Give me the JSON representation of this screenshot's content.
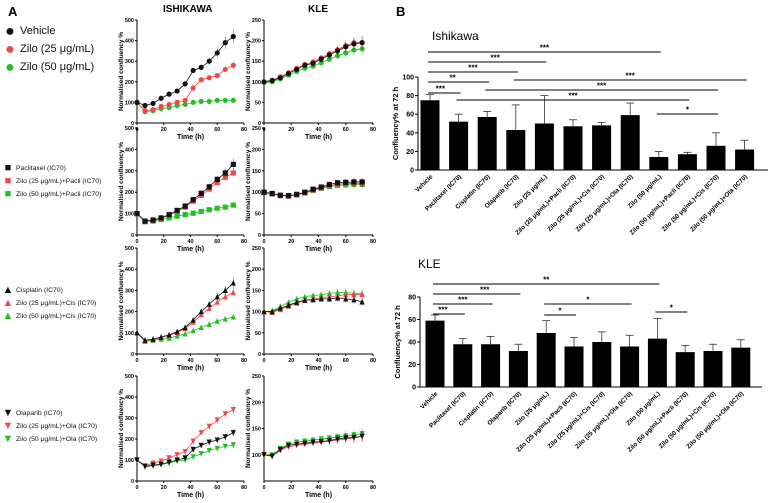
{
  "panel_labels": {
    "a": "A",
    "b": "B"
  },
  "column_titles": {
    "ishikawa": "ISHIKAWA",
    "kle": "KLE"
  },
  "colors": {
    "black": "#111111",
    "red": "#f0474d",
    "green": "#22c022"
  },
  "legends": [
    {
      "marker": "circle",
      "items": [
        "Vehicle",
        "Zilo (25 μg/mL)",
        "Zilo (50 μg/mL)"
      ]
    },
    {
      "marker": "square",
      "items": [
        "Paclitaxel (IC70)",
        "Zilo (25 μg/mL)+Pacli (IC70)",
        "Zilo (50 μg/mL)+Pacli (IC70)"
      ]
    },
    {
      "marker": "triangle-up",
      "items": [
        "Cisplatin (IC70)",
        "Zilo (25 μg/mL)+Cis (IC70)",
        "Zilo (50 μg/mL)+Cis (IC70)"
      ]
    },
    {
      "marker": "triangle-down",
      "items": [
        "Olaparib (IC70)",
        "Zilo (25 μg/mL)+Ola (IC70)",
        "Zilo (50 μg/mL)+Ola (IC70)"
      ]
    }
  ],
  "chart_data": [
    {
      "type": "line",
      "id": "ish-vehicle",
      "xlabel": "Time (h)",
      "ylabel": "Normalised confluency %",
      "xlim": [
        0,
        80
      ],
      "ylim": [
        0,
        500
      ],
      "xticks": [
        0,
        20,
        40,
        60,
        80
      ],
      "yticks": [
        0,
        100,
        200,
        300,
        400,
        500
      ],
      "x": [
        0,
        6,
        12,
        18,
        24,
        30,
        36,
        42,
        48,
        54,
        60,
        66,
        72
      ],
      "series": [
        {
          "name": "Vehicle",
          "values": [
            100,
            85,
            95,
            120,
            140,
            155,
            190,
            255,
            270,
            300,
            340,
            390,
            420
          ]
        },
        {
          "name": "Zilo (25 μg/mL)",
          "values": [
            100,
            60,
            65,
            80,
            90,
            100,
            110,
            170,
            210,
            220,
            230,
            260,
            280
          ]
        },
        {
          "name": "Zilo (50 μg/mL)",
          "values": [
            100,
            55,
            60,
            70,
            75,
            85,
            90,
            100,
            105,
            105,
            110,
            110,
            110
          ]
        }
      ]
    },
    {
      "type": "line",
      "id": "kle-vehicle",
      "xlabel": "Time (h)",
      "ylabel": "Normalised confluency %",
      "xlim": [
        0,
        80
      ],
      "ylim": [
        0,
        250
      ],
      "xticks": [
        0,
        20,
        40,
        60,
        80
      ],
      "yticks": [
        0,
        50,
        100,
        150,
        200,
        250
      ],
      "x": [
        0,
        6,
        12,
        18,
        24,
        30,
        36,
        42,
        48,
        54,
        60,
        66,
        72
      ],
      "series": [
        {
          "name": "Vehicle",
          "values": [
            100,
            103,
            110,
            120,
            130,
            140,
            145,
            155,
            165,
            175,
            185,
            192,
            195
          ]
        },
        {
          "name": "Zilo (25 μg/mL)",
          "values": [
            100,
            104,
            112,
            122,
            133,
            142,
            148,
            158,
            168,
            178,
            188,
            195,
            195
          ]
        },
        {
          "name": "Zilo (50 μg/mL)",
          "values": [
            98,
            100,
            107,
            116,
            125,
            133,
            138,
            146,
            155,
            163,
            170,
            177,
            180
          ]
        }
      ]
    },
    {
      "type": "line",
      "id": "ish-pacli",
      "xlabel": "Time (h)",
      "ylabel": "Normalised confluency %",
      "xlim": [
        0,
        80
      ],
      "ylim": [
        0,
        500
      ],
      "xticks": [
        0,
        20,
        40,
        60,
        80
      ],
      "yticks": [
        0,
        100,
        200,
        300,
        400,
        500
      ],
      "x": [
        0,
        6,
        12,
        18,
        24,
        30,
        36,
        42,
        48,
        54,
        60,
        66,
        72
      ],
      "series": [
        {
          "name": "Paclitaxel (IC70)",
          "values": [
            100,
            65,
            70,
            80,
            95,
            115,
            135,
            165,
            195,
            225,
            260,
            290,
            330
          ]
        },
        {
          "name": "Zilo (25 μg/mL)+Pacli (IC70)",
          "values": [
            100,
            63,
            68,
            78,
            92,
            110,
            130,
            158,
            185,
            215,
            245,
            270,
            290
          ]
        },
        {
          "name": "Zilo (50 μg/mL)+Pacli (IC70)",
          "values": [
            100,
            62,
            65,
            72,
            80,
            88,
            95,
            102,
            110,
            118,
            125,
            130,
            140
          ]
        }
      ]
    },
    {
      "type": "line",
      "id": "kle-pacli",
      "xlabel": "Time (h)",
      "ylabel": "Normalised confluency %",
      "xlim": [
        0,
        80
      ],
      "ylim": [
        0,
        250
      ],
      "xticks": [
        0,
        20,
        40,
        60,
        80
      ],
      "yticks": [
        0,
        50,
        100,
        150,
        200,
        250
      ],
      "x": [
        0,
        6,
        12,
        18,
        24,
        30,
        36,
        42,
        48,
        54,
        60,
        66,
        72
      ],
      "series": [
        {
          "name": "Paclitaxel (IC70)",
          "values": [
            100,
            97,
            93,
            92,
            95,
            100,
            107,
            112,
            118,
            122,
            123,
            124,
            124
          ]
        },
        {
          "name": "Zilo (25 μg/mL)+Pacli (IC70)",
          "values": [
            100,
            96,
            92,
            91,
            94,
            99,
            105,
            110,
            115,
            119,
            120,
            120,
            120
          ]
        },
        {
          "name": "Zilo (50 μg/mL)+Pacli (IC70)",
          "values": [
            99,
            96,
            92,
            91,
            94,
            98,
            104,
            109,
            113,
            116,
            117,
            118,
            118
          ]
        }
      ]
    },
    {
      "type": "line",
      "id": "ish-cis",
      "xlabel": "Time (h)",
      "ylabel": "Normalised confluency %",
      "xlim": [
        0,
        80
      ],
      "ylim": [
        0,
        500
      ],
      "xticks": [
        0,
        20,
        40,
        60,
        80
      ],
      "yticks": [
        0,
        100,
        200,
        300,
        400,
        500
      ],
      "x": [
        0,
        6,
        12,
        18,
        24,
        30,
        36,
        42,
        48,
        54,
        60,
        66,
        72
      ],
      "series": [
        {
          "name": "Cisplatin (IC70)",
          "values": [
            100,
            65,
            70,
            80,
            90,
            105,
            125,
            160,
            200,
            235,
            270,
            300,
            335
          ]
        },
        {
          "name": "Zilo (25 μg/mL)+Cis (IC70)",
          "values": [
            100,
            64,
            68,
            78,
            88,
            102,
            120,
            150,
            185,
            215,
            245,
            270,
            290
          ]
        },
        {
          "name": "Zilo (50 μg/mL)+Cis (IC70)",
          "values": [
            100,
            60,
            65,
            70,
            75,
            85,
            95,
            110,
            125,
            140,
            155,
            165,
            175
          ]
        }
      ]
    },
    {
      "type": "line",
      "id": "kle-cis",
      "xlabel": "Time (h)",
      "ylabel": "Normalised confluency %",
      "xlim": [
        0,
        80
      ],
      "ylim": [
        0,
        250
      ],
      "xticks": [
        0,
        20,
        40,
        60,
        80
      ],
      "yticks": [
        0,
        50,
        100,
        150,
        200,
        250
      ],
      "x": [
        0,
        6,
        12,
        18,
        24,
        30,
        36,
        42,
        48,
        54,
        60,
        66,
        72
      ],
      "series": [
        {
          "name": "Cisplatin (IC70)",
          "values": [
            100,
            100,
            108,
            115,
            122,
            127,
            128,
            130,
            130,
            132,
            130,
            128,
            123
          ]
        },
        {
          "name": "Zilo (25 μg/mL)+Cis (IC70)",
          "values": [
            100,
            98,
            105,
            113,
            120,
            126,
            130,
            133,
            135,
            137,
            140,
            140,
            140
          ]
        },
        {
          "name": "Zilo (50 μg/mL)+Cis (IC70)",
          "values": [
            100,
            102,
            112,
            122,
            130,
            135,
            138,
            140,
            143,
            145,
            145,
            143,
            142
          ]
        }
      ]
    },
    {
      "type": "line",
      "id": "ish-ola",
      "xlabel": "Time (h)",
      "ylabel": "Normalised confluency %",
      "xlim": [
        0,
        80
      ],
      "ylim": [
        0,
        500
      ],
      "xticks": [
        0,
        20,
        40,
        60,
        80
      ],
      "yticks": [
        0,
        100,
        200,
        300,
        400,
        500
      ],
      "x": [
        0,
        6,
        12,
        18,
        24,
        30,
        36,
        42,
        48,
        54,
        60,
        66,
        72
      ],
      "series": [
        {
          "name": "Olaparib (IC70)",
          "values": [
            100,
            70,
            75,
            80,
            90,
            100,
            110,
            150,
            170,
            185,
            195,
            210,
            230
          ]
        },
        {
          "name": "Zilo (25 μg/mL)+Ola (IC70)",
          "values": [
            100,
            72,
            85,
            95,
            110,
            125,
            140,
            190,
            230,
            260,
            290,
            320,
            340
          ]
        },
        {
          "name": "Zilo (50 μg/mL)+Ola (IC70)",
          "values": [
            100,
            68,
            72,
            78,
            85,
            95,
            100,
            115,
            130,
            145,
            155,
            165,
            172
          ]
        }
      ]
    },
    {
      "type": "line",
      "id": "kle-ola",
      "xlabel": "Time (h)",
      "ylabel": "Normalised confluency %",
      "xlim": [
        0,
        80
      ],
      "ylim": [
        50,
        250
      ],
      "xticks": [
        0,
        20,
        40,
        60,
        80
      ],
      "yticks": [
        100,
        150,
        200,
        250
      ],
      "x": [
        0,
        6,
        12,
        18,
        24,
        30,
        36,
        42,
        48,
        54,
        60,
        66,
        72
      ],
      "series": [
        {
          "name": "Olaparib (IC70)",
          "values": [
            100,
            97,
            110,
            118,
            120,
            122,
            124,
            125,
            127,
            130,
            132,
            133,
            135
          ]
        },
        {
          "name": "Zilo (25 μg/mL)+Ola (IC70)",
          "values": [
            100,
            98,
            108,
            115,
            118,
            120,
            122,
            124,
            126,
            128,
            130,
            132,
            135
          ]
        },
        {
          "name": "Zilo (50 μg/mL)+Ola (IC70)",
          "values": [
            100,
            100,
            112,
            120,
            124,
            126,
            128,
            130,
            132,
            134,
            136,
            138,
            140
          ]
        }
      ]
    },
    {
      "type": "bar",
      "id": "ishikawa-bar",
      "title": "Ishikawa",
      "ylabel": "Confluency% at 72 h",
      "ylim": [
        0,
        100
      ],
      "yticks": [
        0,
        20,
        40,
        60,
        80,
        100
      ],
      "categories": [
        "Vehicle",
        "Paclitaxel (IC70)",
        "Cisplatin (IC70)",
        "Olaparib (IC70)",
        "Zilo (25 μg/mL)",
        "Zilo (25 μg/mL)+Pacli (IC70)",
        "Zilo (25 μg/mL)+Cis (IC70)",
        "Zilo (25 μg/mL)+Ola (IC70)",
        "Zilo (50 μg/mL)",
        "Zilo (50 μg/mL)+Pacli (IC70)",
        "Zilo (50 μg/mL)+Cis (IC70)",
        "Zilo (50 μg/mL)+Ola (IC70)"
      ],
      "values": [
        75,
        52,
        57,
        43,
        50,
        47,
        48,
        59,
        14,
        17,
        26,
        22
      ],
      "errors": [
        6,
        8,
        6,
        27,
        30,
        7,
        3,
        13,
        6,
        2,
        14,
        10
      ],
      "significance": [
        {
          "from": 0,
          "to": 8,
          "label": "***"
        },
        {
          "from": 0,
          "to": 4,
          "label": "***"
        },
        {
          "from": 0,
          "to": 3,
          "label": "***"
        },
        {
          "from": 0,
          "to": 2,
          "label": "**"
        },
        {
          "from": 0,
          "to": 1,
          "label": "***"
        },
        {
          "from": 3,
          "to": 11,
          "label": "***"
        },
        {
          "from": 2,
          "to": 10,
          "label": "***"
        },
        {
          "from": 1,
          "to": 9,
          "label": "***"
        },
        {
          "from": 8,
          "to": 10,
          "label": "*"
        }
      ]
    },
    {
      "type": "bar",
      "id": "kle-bar",
      "title": "KLE",
      "ylabel": "Confluency% at 72 h",
      "ylim": [
        0,
        80
      ],
      "yticks": [
        0,
        20,
        40,
        60,
        80
      ],
      "categories": [
        "Vehicle",
        "Paclitaxel (IC70)",
        "Cisplatin (IC70)",
        "Olaparib (IC70)",
        "Zilo (25 μg/mL)",
        "Zilo (25 μg/mL)+Pacli (IC70)",
        "Zilo (25 μg/mL)+Cis (IC70)",
        "Zilo (25 μg/mL)+Ola (IC70)",
        "Zilo (50 μg/mL)",
        "Zilo (50 μg/mL)+Pacli (IC70)",
        "Zilo (50 μg/mL)+Cis (IC70)",
        "Zilo (50 μg/mL)+Ola (IC70)"
      ],
      "values": [
        59,
        38,
        38,
        32,
        48,
        36,
        40,
        36,
        43,
        31,
        32,
        35
      ],
      "errors": [
        5,
        5,
        7,
        6,
        11,
        8,
        9,
        10,
        18,
        6,
        6,
        7
      ],
      "significance": [
        {
          "from": 0,
          "to": 8,
          "label": "**"
        },
        {
          "from": 0,
          "to": 3,
          "label": "***"
        },
        {
          "from": 0,
          "to": 2,
          "label": "***"
        },
        {
          "from": 0,
          "to": 1,
          "label": "***"
        },
        {
          "from": 4,
          "to": 7,
          "label": "*"
        },
        {
          "from": 4,
          "to": 5,
          "label": "*"
        },
        {
          "from": 8,
          "to": 9,
          "label": "*"
        }
      ]
    }
  ]
}
